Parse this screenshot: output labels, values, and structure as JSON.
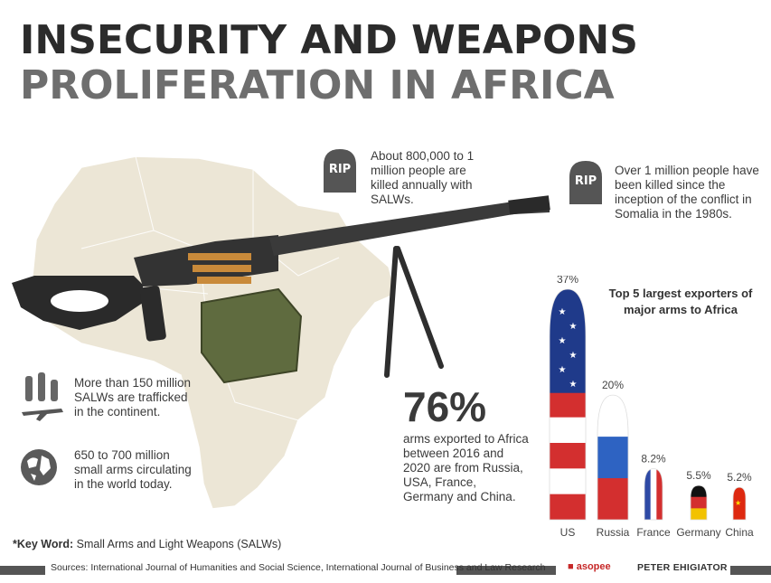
{
  "title": {
    "line1": "INSECURITY AND WEAPONS",
    "line2": "PROLIFERATION IN AFRICA"
  },
  "rip_label": "RIP",
  "stats": {
    "killed_annually": "About 800,000 to 1 million people are killed annually with SALWs.",
    "somalia": "Over 1 million people have been killed since the inception of the conflict in Somalia in the 1980s.",
    "trafficked": "More than 150 million SALWs are trafficked in the continent.",
    "circulating": "650 to 700 million small arms circulating in the world today.",
    "big_percent": "76%",
    "big_percent_text": "arms exported to Africa between 2016 and 2020 are from Russia, USA, France, Germany and China."
  },
  "chart_data": {
    "type": "bar",
    "title": "Top 5 largest exporters of major arms to Africa",
    "categories": [
      "US",
      "Russia",
      "France",
      "Germany",
      "China"
    ],
    "values": [
      37,
      20,
      8.2,
      5.5,
      5.2
    ],
    "value_labels": [
      "37%",
      "20%",
      "8.2%",
      "5.5%",
      "5.2%"
    ],
    "unit": "%",
    "bar_style": "flag-bullets",
    "colors": {
      "US": [
        "#1f3a8a",
        "#ffffff",
        "#d32f2f"
      ],
      "Russia": [
        "#ffffff",
        "#2e63c2",
        "#d32f2f"
      ],
      "France": [
        "#2e4aa5",
        "#ffffff",
        "#d32f2f"
      ],
      "Germany": [
        "#111111",
        "#d32f2f",
        "#f2c200"
      ],
      "China": [
        "#de2910",
        "#ffde00"
      ]
    }
  },
  "keyword": {
    "label": "*Key Word:",
    "text": "Small Arms and Light Weapons (SALWs)"
  },
  "footer": {
    "sources": "Sources: International Journal of Humanities and Social Science, International Journal of Business and Law Research",
    "brand": "asopee",
    "author": "PETER EHIGIATOR"
  },
  "colors": {
    "title_dark": "#2b2b2b",
    "title_grey": "#6e6e6e",
    "map": "#ece6d6",
    "footer_bar": "#555555"
  }
}
